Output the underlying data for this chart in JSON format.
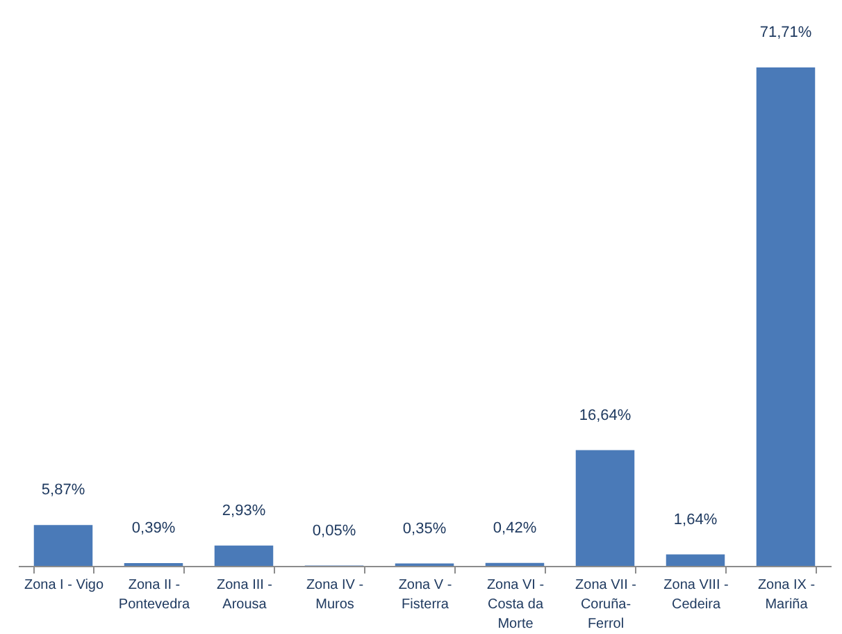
{
  "chart_data": {
    "type": "bar",
    "categories": [
      "Zona I - Vigo",
      "Zona II - Pontevedra",
      "Zona III - Arousa",
      "Zona IV - Muros",
      "Zona V - Fisterra",
      "Zona VI - Costa da Morte",
      "Zona VII - Coruña-Ferrol",
      "Zona VIII - Cedeira",
      "Zona IX - Mariña"
    ],
    "values": [
      5.87,
      0.39,
      2.93,
      0.05,
      0.35,
      0.42,
      16.64,
      1.64,
      71.71
    ],
    "color": "#4a7ab8",
    "value_labels": [
      "5,87%",
      "0,39%",
      "2,93%",
      "0,05%",
      "0,35%",
      "0,42%",
      "16,64%",
      "1,64%",
      "71,71%"
    ]
  }
}
